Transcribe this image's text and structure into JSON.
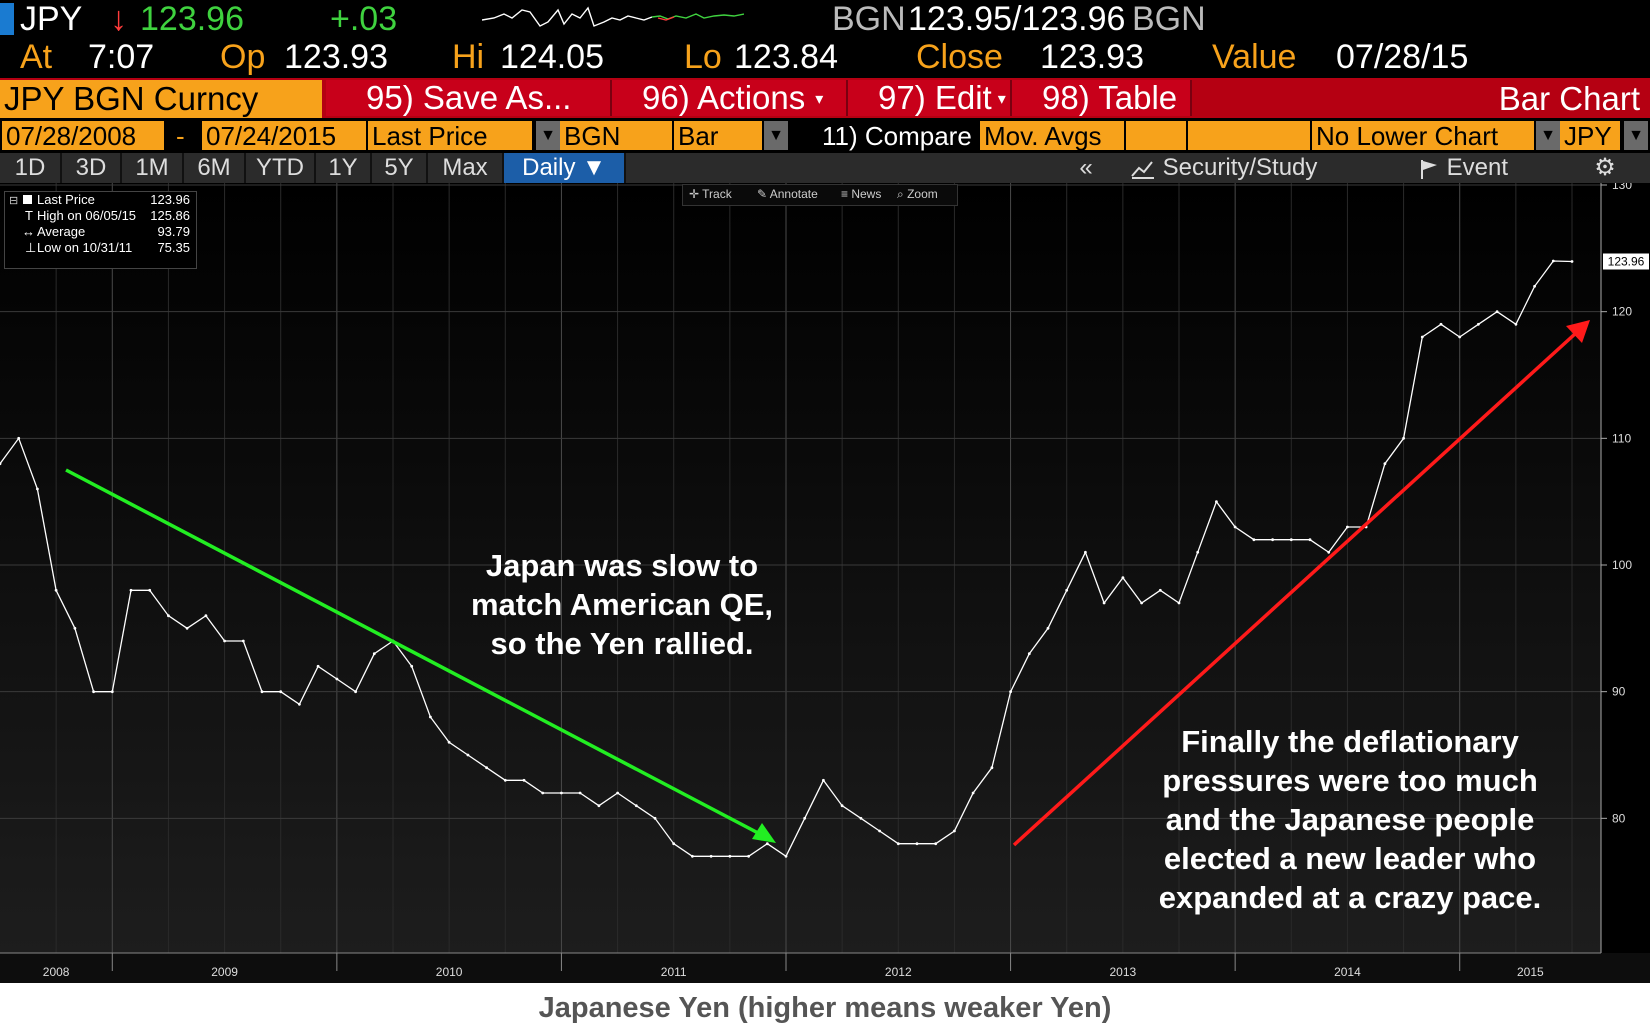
{
  "header": {
    "ticker": "JPY",
    "arrow": "↓",
    "last": "123.96",
    "change": "+.03",
    "source_bid": "BGN",
    "bid_ask": "123.95/123.96",
    "source_ask": "BGN",
    "at_label": "At",
    "time": "7:07",
    "op_label": "Op",
    "op": "123.93",
    "hi_label": "Hi",
    "hi": "124.05",
    "lo_label": "Lo",
    "lo": "123.84",
    "close_label": "Close",
    "close": "123.93",
    "value_label": "Value",
    "value_date": "07/28/15"
  },
  "toolbar": {
    "security": "JPY BGN Curncy",
    "save_as": "95) Save As...",
    "actions": "96) Actions",
    "edit": "97) Edit",
    "table": "98) Table",
    "bar_chart": "Bar Chart"
  },
  "fields": {
    "start_date": "07/28/2008",
    "dash": "-",
    "end_date": "07/24/2015",
    "field": "Last Price",
    "source": "BGN",
    "style": "Bar",
    "compare": "11) Compare",
    "mov_avgs": "Mov. Avgs",
    "lower_chart": "No Lower Chart",
    "currency": "JPY"
  },
  "periods": [
    "1D",
    "3D",
    "1M",
    "6M",
    "YTD",
    "1Y",
    "5Y",
    "Max"
  ],
  "frequency": "Daily ▼",
  "right_tools": {
    "collapse": "«",
    "security_study": "Security/Study",
    "event": "Event",
    "gear": "⚙"
  },
  "chart_tools": [
    "Track",
    "Annotate",
    "News",
    "Zoom"
  ],
  "legend": {
    "last_label": "Last Price",
    "last_value": "123.96",
    "high_label": "High on 06/05/15",
    "high_value": "125.86",
    "avg_label": "Average",
    "avg_value": "93.79",
    "low_label": "Low on 10/31/11",
    "low_value": "75.35"
  },
  "annotations": {
    "left_1": "Japan was slow to",
    "left_2": "match American QE,",
    "left_3": "so the Yen rallied.",
    "right_1": "Finally the deflationary",
    "right_2": "pressures were too much",
    "right_3": "and the Japanese people",
    "right_4": "elected a new leader who",
    "right_5": "expanded at a crazy pace."
  },
  "caption": "Japanese Yen (higher means weaker Yen)",
  "colors": {
    "amber": "#f7a21b",
    "up_arrow": "#22ff22",
    "down_arrow": "#ff2020",
    "background": "#000000"
  },
  "chart_data": {
    "type": "line",
    "ylim": [
      70,
      130
    ],
    "yticks": [
      80,
      90,
      100,
      110,
      120,
      130
    ],
    "x_years": [
      "2008",
      "2009",
      "2010",
      "2011",
      "2012",
      "2013",
      "2014",
      "2015"
    ],
    "last_price_tag": "123.96",
    "series": [
      {
        "x": [
          "2008-07",
          "2008-08",
          "2008-09",
          "2008-10",
          "2008-11",
          "2008-12",
          "2009-01",
          "2009-02",
          "2009-03",
          "2009-04",
          "2009-05",
          "2009-06",
          "2009-07",
          "2009-08",
          "2009-09",
          "2009-10",
          "2009-11",
          "2009-12",
          "2010-01",
          "2010-02",
          "2010-03",
          "2010-04",
          "2010-05",
          "2010-06",
          "2010-07",
          "2010-08",
          "2010-09",
          "2010-10",
          "2010-11",
          "2010-12",
          "2011-01",
          "2011-02",
          "2011-03",
          "2011-04",
          "2011-05",
          "2011-06",
          "2011-07",
          "2011-08",
          "2011-09",
          "2011-10",
          "2011-11",
          "2011-12",
          "2012-01",
          "2012-02",
          "2012-03",
          "2012-04",
          "2012-05",
          "2012-06",
          "2012-07",
          "2012-08",
          "2012-09",
          "2012-10",
          "2012-11",
          "2012-12",
          "2013-01",
          "2013-02",
          "2013-03",
          "2013-04",
          "2013-05",
          "2013-06",
          "2013-07",
          "2013-08",
          "2013-09",
          "2013-10",
          "2013-11",
          "2013-12",
          "2014-01",
          "2014-02",
          "2014-03",
          "2014-04",
          "2014-05",
          "2014-06",
          "2014-07",
          "2014-08",
          "2014-09",
          "2014-10",
          "2014-11",
          "2014-12",
          "2015-01",
          "2015-02",
          "2015-03",
          "2015-04",
          "2015-05",
          "2015-06",
          "2015-07"
        ],
        "values": [
          108,
          110,
          106,
          98,
          95,
          90,
          90,
          98,
          98,
          96,
          95,
          96,
          94,
          94,
          90,
          90,
          89,
          92,
          91,
          90,
          93,
          94,
          92,
          88,
          86,
          85,
          84,
          83,
          83,
          82,
          82,
          82,
          81,
          82,
          81,
          80,
          78,
          77,
          77,
          77,
          77,
          78,
          77,
          80,
          83,
          81,
          80,
          79,
          78,
          78,
          78,
          79,
          82,
          84,
          90,
          93,
          95,
          98,
          101,
          97,
          99,
          97,
          98,
          97,
          101,
          105,
          103,
          102,
          102,
          102,
          102,
          101,
          103,
          103,
          108,
          110,
          118,
          119,
          118,
          119,
          120,
          119,
          122,
          124,
          123.96
        ]
      }
    ]
  }
}
